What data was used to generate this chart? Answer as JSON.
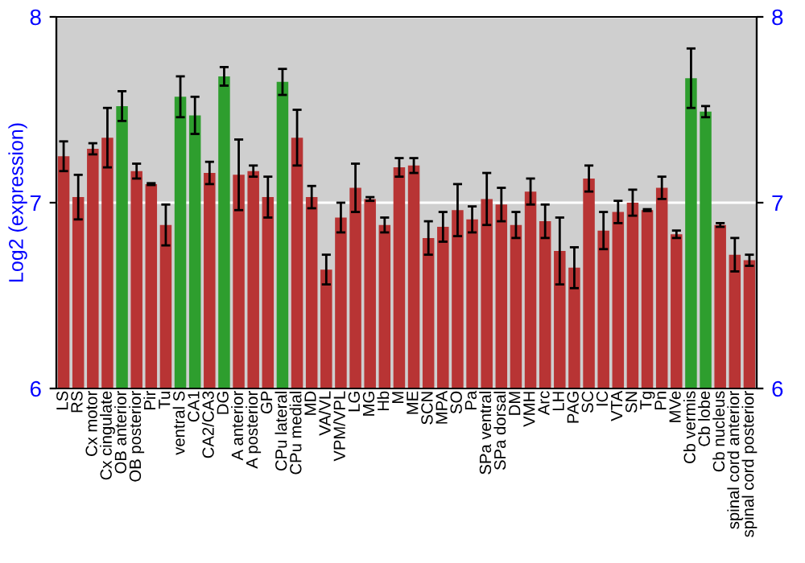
{
  "chart_data": {
    "type": "bar",
    "ylabel": "Log2 (expression)",
    "categories": [
      "LS",
      "RS",
      "Cx motor",
      "Cx cingulate",
      "OB anterior",
      "OB posterior",
      "Pir",
      "Tu",
      "ventral S",
      "CA1",
      "CA2/CA3",
      "DG",
      "A anterior",
      "A posterior",
      "GP",
      "CPu lateral",
      "CPu medial",
      "MD",
      "VA/VL",
      "VPM/VPL",
      "LG",
      "MG",
      "Hb",
      "M",
      "ME",
      "SCN",
      "MPA",
      "SO",
      "Pa",
      "SPa ventral",
      "SPa dorsal",
      "DM",
      "VMH",
      "Arc",
      "LH",
      "PAG",
      "SC",
      "IC",
      "VTA",
      "SN",
      "Tg",
      "Pn",
      "MVe",
      "Cb vermis",
      "Cb lobe",
      "Cb nucleus",
      "spinal cord anterior",
      "spinal cord posterior"
    ],
    "values": [
      7.25,
      7.03,
      7.29,
      7.35,
      7.52,
      7.17,
      7.1,
      6.88,
      7.57,
      7.47,
      7.16,
      7.68,
      7.15,
      7.17,
      7.03,
      7.65,
      7.35,
      7.03,
      6.64,
      6.92,
      7.08,
      7.02,
      6.88,
      7.19,
      7.2,
      6.81,
      6.87,
      6.96,
      6.91,
      7.02,
      6.99,
      6.88,
      7.06,
      6.9,
      6.74,
      6.65,
      7.13,
      6.85,
      6.95,
      7.0,
      6.96,
      7.08,
      6.83,
      7.67,
      7.49,
      6.88,
      6.72,
      6.69
    ],
    "errors": [
      0.08,
      0.12,
      0.03,
      0.16,
      0.08,
      0.04,
      0.005,
      0.11,
      0.11,
      0.1,
      0.06,
      0.05,
      0.19,
      0.03,
      0.11,
      0.07,
      0.15,
      0.06,
      0.08,
      0.08,
      0.13,
      0.01,
      0.04,
      0.05,
      0.04,
      0.09,
      0.08,
      0.14,
      0.07,
      0.14,
      0.09,
      0.07,
      0.07,
      0.09,
      0.18,
      0.11,
      0.07,
      0.1,
      0.06,
      0.07,
      0.005,
      0.06,
      0.02,
      0.16,
      0.03,
      0.01,
      0.09,
      0.03
    ],
    "colors": [
      "#b83434",
      "#b83434",
      "#b83434",
      "#b83434",
      "#2e9e2e",
      "#b83434",
      "#b83434",
      "#b83434",
      "#2e9e2e",
      "#2e9e2e",
      "#b83434",
      "#2e9e2e",
      "#b83434",
      "#b83434",
      "#b83434",
      "#2e9e2e",
      "#b83434",
      "#b83434",
      "#b83434",
      "#b83434",
      "#b83434",
      "#b83434",
      "#b83434",
      "#b83434",
      "#b83434",
      "#b83434",
      "#b83434",
      "#b83434",
      "#b83434",
      "#b83434",
      "#b83434",
      "#b83434",
      "#b83434",
      "#b83434",
      "#b83434",
      "#b83434",
      "#b83434",
      "#b83434",
      "#b83434",
      "#b83434",
      "#b83434",
      "#b83434",
      "#b83434",
      "#2e9e2e",
      "#2e9e2e",
      "#b83434",
      "#b83434",
      "#b83434"
    ],
    "ylim": [
      6,
      8
    ],
    "yticks": [
      6,
      7,
      8
    ],
    "y2lim": [
      6,
      8
    ],
    "y2ticks": [
      6,
      7,
      8
    ],
    "grid": "y"
  }
}
